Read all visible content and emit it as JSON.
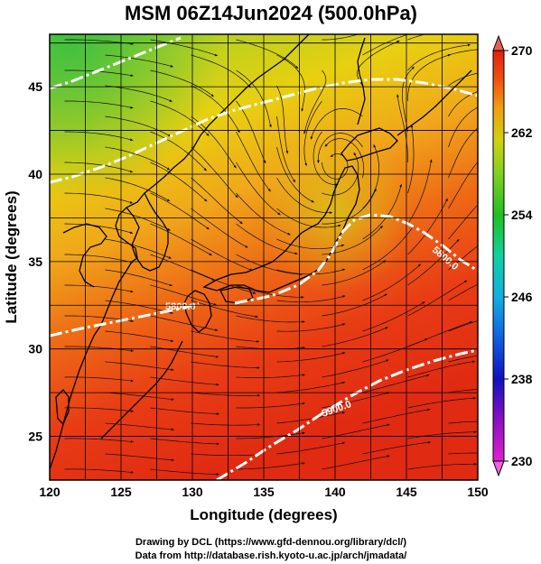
{
  "title": "MSM 06Z14Jun2024 (500.0hPa)",
  "xlabel": "Longitude (degrees)",
  "ylabel": "Latitude  (degrees)",
  "credits": [
    "Drawing by DCL (https://www.gfd-dennou.org/library/dcl/)",
    "Data from http://database.rish.kyoto-u.ac.jp/arch/jmadata/"
  ],
  "map": {
    "lon_range": [
      120,
      150
    ],
    "lat_range": [
      22.5,
      48
    ],
    "lon_ticks": [
      "120",
      "125",
      "130",
      "135",
      "140",
      "145",
      "150"
    ],
    "lat_ticks": [
      "25",
      "30",
      "35",
      "40",
      "45"
    ],
    "grid": true
  },
  "colorbar": {
    "range": [
      230,
      270
    ],
    "tick_labels": [
      "230",
      "238",
      "246",
      "254",
      "262",
      "270"
    ],
    "colors": [
      "#e020d0",
      "#8a10c0",
      "#1010c0",
      "#1060e0",
      "#10b0e0",
      "#10d0a0",
      "#20c020",
      "#80d020",
      "#d0d010",
      "#f0a010",
      "#f05010",
      "#e02010"
    ],
    "extend": "both"
  },
  "contours": [
    {
      "label": "5800.0"
    },
    {
      "label": "5900.0"
    },
    {
      "label": "5800.0"
    },
    {
      "label": "5700.0"
    }
  ]
}
